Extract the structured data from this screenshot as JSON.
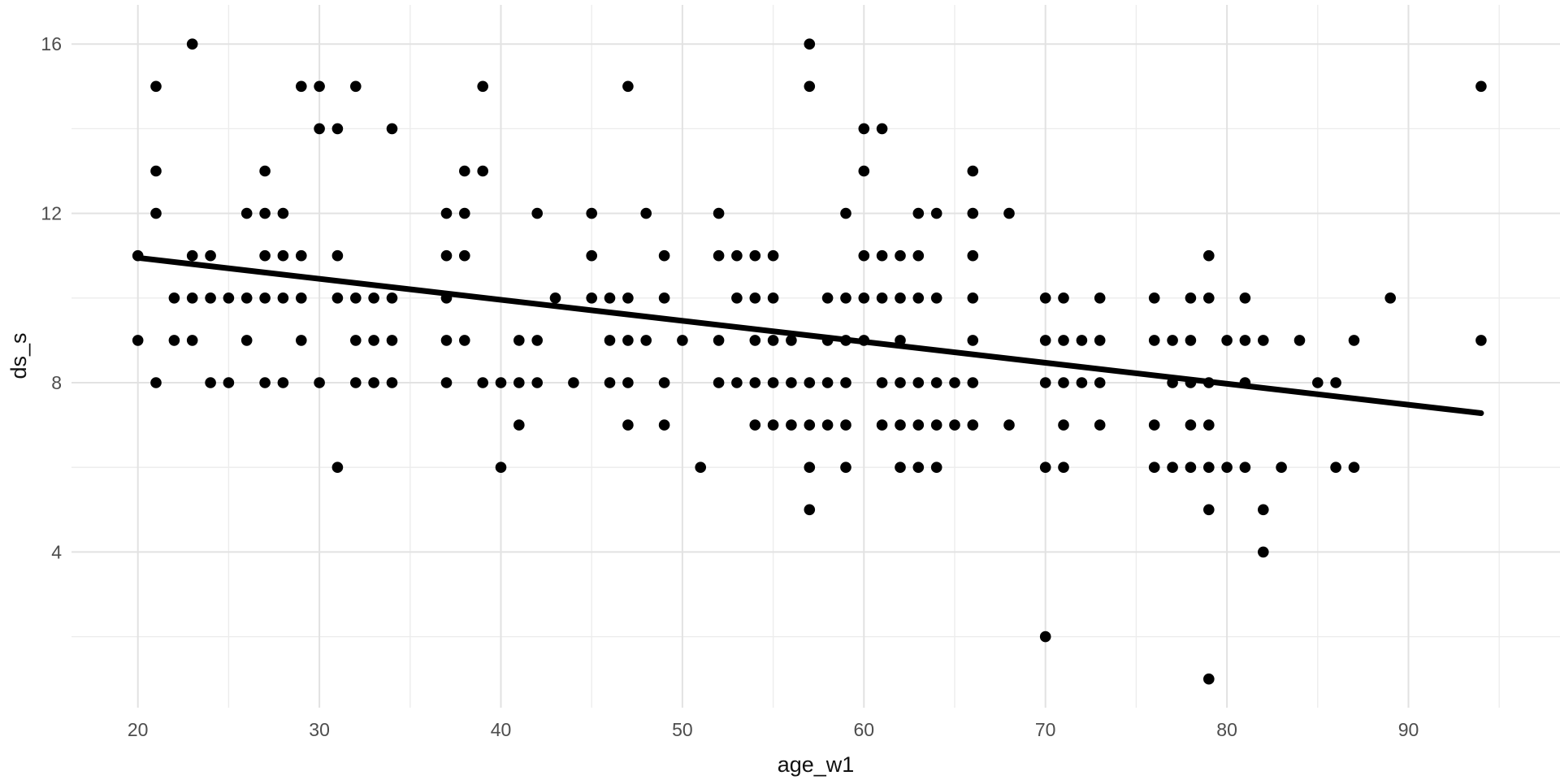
{
  "chart_data": {
    "type": "scatter",
    "title": "",
    "xlabel": "age_w1",
    "ylabel": "ds_s",
    "x_ticks": [
      20,
      30,
      40,
      50,
      60,
      70,
      80,
      90
    ],
    "x_minor_gridlines": [
      25,
      35,
      45,
      55,
      65,
      75,
      85,
      95
    ],
    "y_ticks": [
      4,
      8,
      12,
      16
    ],
    "y_minor_gridlines": [
      2,
      6,
      10,
      14
    ],
    "xlim": [
      16.3,
      98.3
    ],
    "ylim": [
      0.3,
      16.9
    ],
    "grid": "on",
    "legend": "none",
    "background_color": "#ffffff",
    "grid_major_color": "#e2e2e2",
    "grid_minor_color": "#ececec",
    "point_color": "#000000",
    "trend_color": "#000000",
    "tick_label_color": "#4d4d4d",
    "axis_title_color": "#111111",
    "trend_line": {
      "x1": 20,
      "y1": 10.95,
      "x2": 94,
      "y2": 7.28
    },
    "points": [
      [
        23,
        16
      ],
      [
        57,
        16
      ],
      [
        21,
        15
      ],
      [
        29,
        15
      ],
      [
        30,
        15
      ],
      [
        32,
        15
      ],
      [
        39,
        15
      ],
      [
        47,
        15
      ],
      [
        57,
        15
      ],
      [
        94,
        15
      ],
      [
        30,
        14
      ],
      [
        31,
        14
      ],
      [
        34,
        14
      ],
      [
        60,
        14
      ],
      [
        61,
        14
      ],
      [
        21,
        13
      ],
      [
        27,
        13
      ],
      [
        38,
        13
      ],
      [
        39,
        13
      ],
      [
        60,
        13
      ],
      [
        66,
        13
      ],
      [
        21,
        12
      ],
      [
        26,
        12
      ],
      [
        27,
        12
      ],
      [
        28,
        12
      ],
      [
        37,
        12
      ],
      [
        38,
        12
      ],
      [
        42,
        12
      ],
      [
        45,
        12
      ],
      [
        48,
        12
      ],
      [
        52,
        12
      ],
      [
        59,
        12
      ],
      [
        63,
        12
      ],
      [
        64,
        12
      ],
      [
        66,
        12
      ],
      [
        68,
        12
      ],
      [
        20,
        11
      ],
      [
        23,
        11
      ],
      [
        24,
        11
      ],
      [
        27,
        11
      ],
      [
        28,
        11
      ],
      [
        29,
        11
      ],
      [
        31,
        11
      ],
      [
        37,
        11
      ],
      [
        38,
        11
      ],
      [
        45,
        11
      ],
      [
        49,
        11
      ],
      [
        52,
        11
      ],
      [
        53,
        11
      ],
      [
        54,
        11
      ],
      [
        55,
        11
      ],
      [
        60,
        11
      ],
      [
        61,
        11
      ],
      [
        62,
        11
      ],
      [
        63,
        11
      ],
      [
        66,
        11
      ],
      [
        79,
        11
      ],
      [
        22,
        10
      ],
      [
        23,
        10
      ],
      [
        24,
        10
      ],
      [
        25,
        10
      ],
      [
        26,
        10
      ],
      [
        27,
        10
      ],
      [
        28,
        10
      ],
      [
        29,
        10
      ],
      [
        31,
        10
      ],
      [
        32,
        10
      ],
      [
        33,
        10
      ],
      [
        34,
        10
      ],
      [
        37,
        10
      ],
      [
        43,
        10
      ],
      [
        45,
        10
      ],
      [
        46,
        10
      ],
      [
        47,
        10
      ],
      [
        49,
        10
      ],
      [
        53,
        10
      ],
      [
        54,
        10
      ],
      [
        55,
        10
      ],
      [
        58,
        10
      ],
      [
        59,
        10
      ],
      [
        60,
        10
      ],
      [
        61,
        10
      ],
      [
        62,
        10
      ],
      [
        63,
        10
      ],
      [
        64,
        10
      ],
      [
        66,
        10
      ],
      [
        70,
        10
      ],
      [
        71,
        10
      ],
      [
        73,
        10
      ],
      [
        76,
        10
      ],
      [
        78,
        10
      ],
      [
        79,
        10
      ],
      [
        81,
        10
      ],
      [
        89,
        10
      ],
      [
        20,
        9
      ],
      [
        22,
        9
      ],
      [
        23,
        9
      ],
      [
        26,
        9
      ],
      [
        29,
        9
      ],
      [
        32,
        9
      ],
      [
        33,
        9
      ],
      [
        34,
        9
      ],
      [
        37,
        9
      ],
      [
        38,
        9
      ],
      [
        41,
        9
      ],
      [
        42,
        9
      ],
      [
        46,
        9
      ],
      [
        47,
        9
      ],
      [
        48,
        9
      ],
      [
        50,
        9
      ],
      [
        52,
        9
      ],
      [
        54,
        9
      ],
      [
        55,
        9
      ],
      [
        56,
        9
      ],
      [
        58,
        9
      ],
      [
        59,
        9
      ],
      [
        60,
        9
      ],
      [
        62,
        9
      ],
      [
        66,
        9
      ],
      [
        70,
        9
      ],
      [
        71,
        9
      ],
      [
        72,
        9
      ],
      [
        73,
        9
      ],
      [
        76,
        9
      ],
      [
        77,
        9
      ],
      [
        78,
        9
      ],
      [
        80,
        9
      ],
      [
        81,
        9
      ],
      [
        82,
        9
      ],
      [
        84,
        9
      ],
      [
        87,
        9
      ],
      [
        94,
        9
      ],
      [
        21,
        8
      ],
      [
        24,
        8
      ],
      [
        25,
        8
      ],
      [
        27,
        8
      ],
      [
        28,
        8
      ],
      [
        30,
        8
      ],
      [
        32,
        8
      ],
      [
        33,
        8
      ],
      [
        34,
        8
      ],
      [
        37,
        8
      ],
      [
        39,
        8
      ],
      [
        40,
        8
      ],
      [
        41,
        8
      ],
      [
        42,
        8
      ],
      [
        44,
        8
      ],
      [
        46,
        8
      ],
      [
        47,
        8
      ],
      [
        49,
        8
      ],
      [
        52,
        8
      ],
      [
        53,
        8
      ],
      [
        54,
        8
      ],
      [
        55,
        8
      ],
      [
        56,
        8
      ],
      [
        57,
        8
      ],
      [
        58,
        8
      ],
      [
        59,
        8
      ],
      [
        61,
        8
      ],
      [
        62,
        8
      ],
      [
        63,
        8
      ],
      [
        64,
        8
      ],
      [
        65,
        8
      ],
      [
        66,
        8
      ],
      [
        70,
        8
      ],
      [
        71,
        8
      ],
      [
        72,
        8
      ],
      [
        73,
        8
      ],
      [
        77,
        8
      ],
      [
        78,
        8
      ],
      [
        79,
        8
      ],
      [
        81,
        8
      ],
      [
        85,
        8
      ],
      [
        86,
        8
      ],
      [
        41,
        7
      ],
      [
        47,
        7
      ],
      [
        49,
        7
      ],
      [
        54,
        7
      ],
      [
        55,
        7
      ],
      [
        56,
        7
      ],
      [
        57,
        7
      ],
      [
        58,
        7
      ],
      [
        59,
        7
      ],
      [
        61,
        7
      ],
      [
        62,
        7
      ],
      [
        63,
        7
      ],
      [
        64,
        7
      ],
      [
        65,
        7
      ],
      [
        66,
        7
      ],
      [
        68,
        7
      ],
      [
        71,
        7
      ],
      [
        73,
        7
      ],
      [
        76,
        7
      ],
      [
        78,
        7
      ],
      [
        79,
        7
      ],
      [
        31,
        6
      ],
      [
        40,
        6
      ],
      [
        51,
        6
      ],
      [
        57,
        6
      ],
      [
        59,
        6
      ],
      [
        62,
        6
      ],
      [
        63,
        6
      ],
      [
        64,
        6
      ],
      [
        70,
        6
      ],
      [
        71,
        6
      ],
      [
        76,
        6
      ],
      [
        77,
        6
      ],
      [
        78,
        6
      ],
      [
        79,
        6
      ],
      [
        80,
        6
      ],
      [
        81,
        6
      ],
      [
        83,
        6
      ],
      [
        86,
        6
      ],
      [
        87,
        6
      ],
      [
        57,
        5
      ],
      [
        79,
        5
      ],
      [
        82,
        5
      ],
      [
        82,
        4
      ],
      [
        70,
        2
      ],
      [
        79,
        1
      ]
    ]
  }
}
